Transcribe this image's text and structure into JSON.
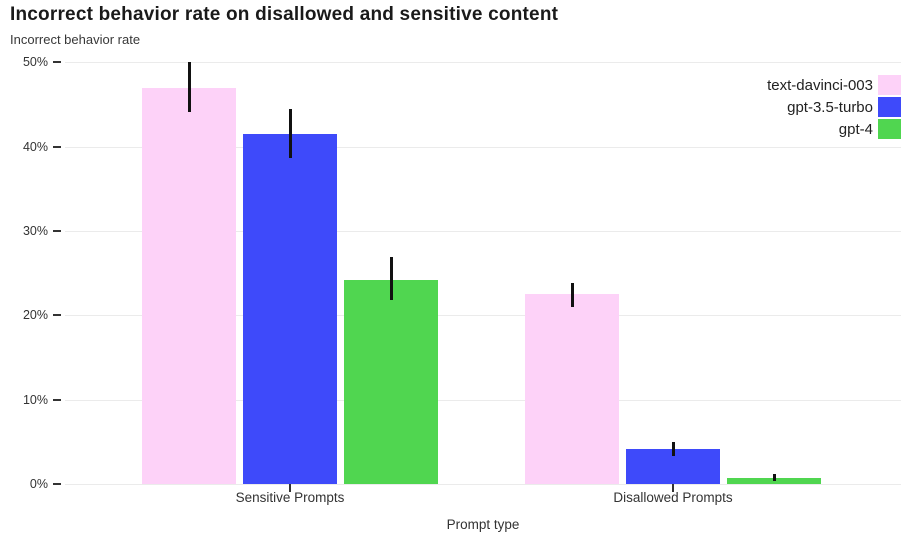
{
  "chart_data": {
    "type": "bar",
    "title": "Incorrect behavior rate on disallowed and sensitive content",
    "ylabel": "Incorrect behavior rate",
    "xlabel": "Prompt type",
    "categories": [
      "Sensitive Prompts",
      "Disallowed Prompts"
    ],
    "series": [
      {
        "name": "text-davinci-003",
        "color": "#fdd2f8",
        "values": [
          47.0,
          22.5
        ],
        "err_low": [
          44.1,
          21.0
        ],
        "err_high": [
          50.0,
          23.8
        ]
      },
      {
        "name": "gpt-3.5-turbo",
        "color": "#3e4afa",
        "values": [
          41.5,
          4.1
        ],
        "err_low": [
          38.7,
          3.3
        ],
        "err_high": [
          44.5,
          5.0
        ]
      },
      {
        "name": "gpt-4",
        "color": "#50d650",
        "values": [
          24.2,
          0.7
        ],
        "err_low": [
          21.8,
          0.3
        ],
        "err_high": [
          26.9,
          1.2
        ]
      }
    ],
    "y_ticks": [
      {
        "value": 0,
        "label": "0%"
      },
      {
        "value": 10,
        "label": "10%"
      },
      {
        "value": 20,
        "label": "20%"
      },
      {
        "value": 30,
        "label": "30%"
      },
      {
        "value": 40,
        "label": "40%"
      },
      {
        "value": 50,
        "label": "50%"
      }
    ],
    "ylim": [
      0,
      50
    ],
    "grid": true,
    "legend_position": "top-right",
    "error_bar_color": "#111111",
    "gridline_color": "#ebebeb"
  }
}
